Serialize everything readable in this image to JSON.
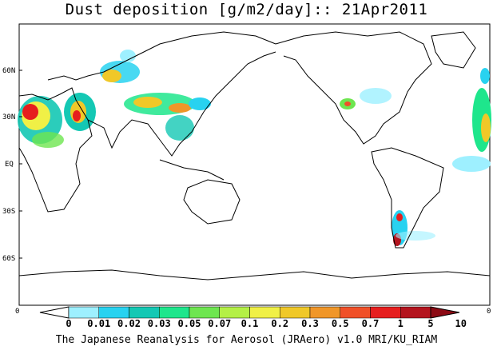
{
  "title": "Dust deposition [g/m2/day]:: 21Apr2011",
  "credit": "The Japanese Reanalysis for Aerosol (JRAero) v1.0 MRI/KU_RIAM",
  "lat_labels": [
    "60N",
    "30N",
    "EQ",
    "30S",
    "60S"
  ],
  "axis_edge_labels": [
    "0",
    "0"
  ],
  "colorbar": {
    "labels": [
      "0",
      "0.01",
      "0.02",
      "0.03",
      "0.05",
      "0.07",
      "0.1",
      "0.2",
      "0.3",
      "0.5",
      "0.7",
      "1",
      "5",
      "10"
    ],
    "colors": [
      "#ffffff",
      "#9ef0ff",
      "#28d2f0",
      "#14c8b4",
      "#1ee68c",
      "#6ee650",
      "#b4f046",
      "#f0f046",
      "#f0c828",
      "#f09628",
      "#f05028",
      "#e61e1e",
      "#b4141e",
      "#8c0a14"
    ]
  }
}
